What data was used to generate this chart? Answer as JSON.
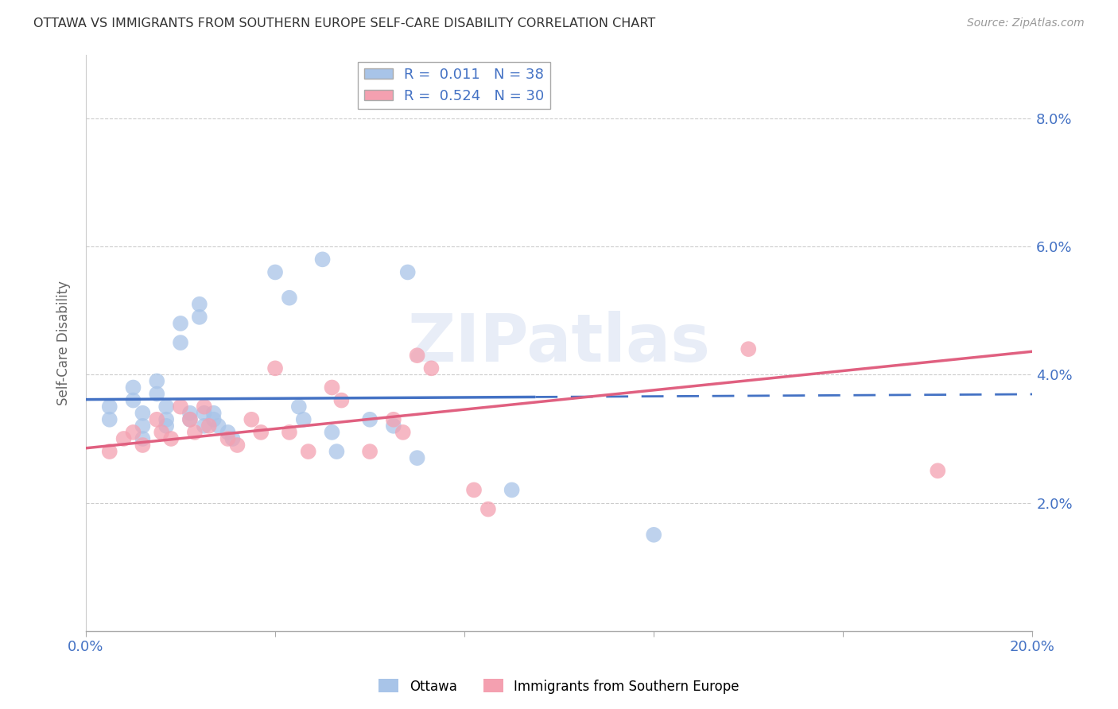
{
  "title": "OTTAWA VS IMMIGRANTS FROM SOUTHERN EUROPE SELF-CARE DISABILITY CORRELATION CHART",
  "source": "Source: ZipAtlas.com",
  "ylabel": "Self-Care Disability",
  "xlim": [
    0.0,
    0.2
  ],
  "ylim": [
    0.0,
    0.09
  ],
  "watermark": "ZIPatlas",
  "ottawa_color": "#a8c4e8",
  "immigrant_color": "#f4a0b0",
  "ottawa_line_color": "#4472c4",
  "immigrant_line_color": "#e06080",
  "ottawa_R": 0.011,
  "ottawa_N": 38,
  "immigrant_R": 0.524,
  "immigrant_N": 30,
  "ottawa_points": [
    [
      0.005,
      0.035
    ],
    [
      0.005,
      0.033
    ],
    [
      0.01,
      0.038
    ],
    [
      0.01,
      0.036
    ],
    [
      0.012,
      0.034
    ],
    [
      0.012,
      0.032
    ],
    [
      0.012,
      0.03
    ],
    [
      0.015,
      0.039
    ],
    [
      0.015,
      0.037
    ],
    [
      0.017,
      0.035
    ],
    [
      0.017,
      0.033
    ],
    [
      0.017,
      0.032
    ],
    [
      0.02,
      0.048
    ],
    [
      0.02,
      0.045
    ],
    [
      0.022,
      0.034
    ],
    [
      0.022,
      0.033
    ],
    [
      0.024,
      0.051
    ],
    [
      0.024,
      0.049
    ],
    [
      0.025,
      0.034
    ],
    [
      0.025,
      0.032
    ],
    [
      0.027,
      0.034
    ],
    [
      0.027,
      0.033
    ],
    [
      0.028,
      0.032
    ],
    [
      0.03,
      0.031
    ],
    [
      0.031,
      0.03
    ],
    [
      0.04,
      0.056
    ],
    [
      0.043,
      0.052
    ],
    [
      0.045,
      0.035
    ],
    [
      0.046,
      0.033
    ],
    [
      0.05,
      0.058
    ],
    [
      0.052,
      0.031
    ],
    [
      0.053,
      0.028
    ],
    [
      0.06,
      0.033
    ],
    [
      0.065,
      0.032
    ],
    [
      0.068,
      0.056
    ],
    [
      0.07,
      0.027
    ],
    [
      0.09,
      0.022
    ],
    [
      0.12,
      0.015
    ]
  ],
  "immigrant_points": [
    [
      0.005,
      0.028
    ],
    [
      0.008,
      0.03
    ],
    [
      0.01,
      0.031
    ],
    [
      0.012,
      0.029
    ],
    [
      0.015,
      0.033
    ],
    [
      0.016,
      0.031
    ],
    [
      0.018,
      0.03
    ],
    [
      0.02,
      0.035
    ],
    [
      0.022,
      0.033
    ],
    [
      0.023,
      0.031
    ],
    [
      0.025,
      0.035
    ],
    [
      0.026,
      0.032
    ],
    [
      0.03,
      0.03
    ],
    [
      0.032,
      0.029
    ],
    [
      0.035,
      0.033
    ],
    [
      0.037,
      0.031
    ],
    [
      0.04,
      0.041
    ],
    [
      0.043,
      0.031
    ],
    [
      0.047,
      0.028
    ],
    [
      0.052,
      0.038
    ],
    [
      0.054,
      0.036
    ],
    [
      0.06,
      0.028
    ],
    [
      0.065,
      0.033
    ],
    [
      0.067,
      0.031
    ],
    [
      0.07,
      0.043
    ],
    [
      0.073,
      0.041
    ],
    [
      0.082,
      0.022
    ],
    [
      0.085,
      0.019
    ],
    [
      0.14,
      0.044
    ],
    [
      0.18,
      0.025
    ]
  ],
  "ottawa_line_x": [
    0.0,
    0.095,
    0.2
  ],
  "ottawa_line_y_solid_end": 0.095,
  "immigrant_line_x0": 0.0,
  "immigrant_line_x1": 0.2
}
